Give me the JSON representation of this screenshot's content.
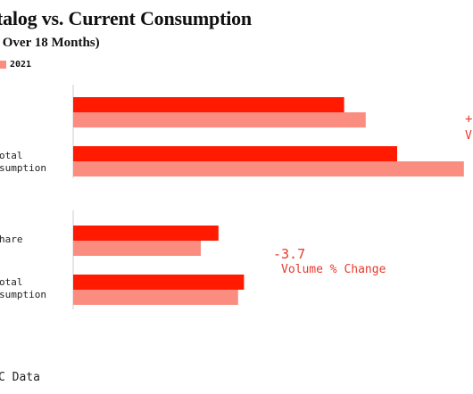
{
  "title": "talog vs. Current Consumption",
  "subtitle": "- Over 18 Months)",
  "legend": [
    {
      "name": "2021",
      "color": "#fa8c80"
    }
  ],
  "colors": {
    "current": "#ff1a00",
    "previous": "#fa8c80",
    "annotation": "#e8392b",
    "axis": "#cccccc"
  },
  "annotations": {
    "group1_value": "+",
    "group1_text": "V",
    "group2_value": "-3.7",
    "group2_text": "Volume % Change"
  },
  "source": "C Data",
  "chart_data": {
    "type": "bar",
    "orientation": "horizontal",
    "categories": [
      "",
      "otal\nsumption",
      "hare",
      "otal\nsumption"
    ],
    "series": [
      {
        "values": [
          69.0,
          82.5,
          37.0,
          43.5
        ]
      },
      {
        "name": "2021",
        "values": [
          74.5,
          99.5,
          32.5,
          42.0
        ]
      }
    ],
    "xlim": [
      0,
      100
    ],
    "xlabel": "",
    "ylabel": ""
  }
}
